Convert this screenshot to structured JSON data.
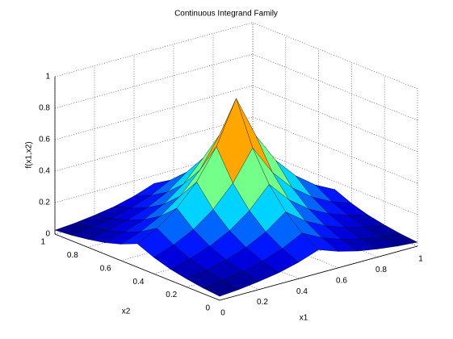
{
  "chart_data": {
    "type": "surface",
    "title": "Continuous Integrand Family",
    "xlabel": "x1",
    "ylabel": "x2",
    "zlabel": "f(x1,x2)",
    "colormap": "jet",
    "grid": true,
    "edgecolor": "#000000",
    "x": [
      0,
      0.1,
      0.2,
      0.3,
      0.4,
      0.5,
      0.6,
      0.7,
      0.8,
      0.9,
      1
    ],
    "y": [
      0,
      0.1,
      0.2,
      0.3,
      0.4,
      0.5,
      0.6,
      0.7,
      0.8,
      0.9,
      1
    ],
    "z": [
      [
        0.025,
        0.035,
        0.051,
        0.072,
        0.104,
        0.149,
        0.104,
        0.072,
        0.051,
        0.035,
        0.025
      ],
      [
        0.035,
        0.051,
        0.072,
        0.104,
        0.149,
        0.213,
        0.149,
        0.104,
        0.072,
        0.051,
        0.035
      ],
      [
        0.051,
        0.072,
        0.104,
        0.149,
        0.213,
        0.306,
        0.213,
        0.149,
        0.104,
        0.072,
        0.051
      ],
      [
        0.072,
        0.104,
        0.149,
        0.213,
        0.306,
        0.438,
        0.306,
        0.213,
        0.149,
        0.104,
        0.072
      ],
      [
        0.104,
        0.149,
        0.213,
        0.306,
        0.438,
        0.628,
        0.438,
        0.306,
        0.213,
        0.149,
        0.104
      ],
      [
        0.149,
        0.213,
        0.306,
        0.438,
        0.628,
        0.9,
        0.628,
        0.438,
        0.306,
        0.213,
        0.149
      ],
      [
        0.104,
        0.149,
        0.213,
        0.306,
        0.438,
        0.628,
        0.438,
        0.306,
        0.213,
        0.149,
        0.104
      ],
      [
        0.072,
        0.104,
        0.149,
        0.213,
        0.306,
        0.438,
        0.306,
        0.213,
        0.149,
        0.104,
        0.072
      ],
      [
        0.051,
        0.072,
        0.104,
        0.149,
        0.213,
        0.306,
        0.213,
        0.149,
        0.104,
        0.072,
        0.051
      ],
      [
        0.035,
        0.051,
        0.072,
        0.104,
        0.149,
        0.213,
        0.149,
        0.104,
        0.072,
        0.051,
        0.035
      ],
      [
        0.025,
        0.035,
        0.051,
        0.072,
        0.104,
        0.149,
        0.104,
        0.072,
        0.051,
        0.035,
        0.025
      ]
    ],
    "xlim": [
      0,
      1
    ],
    "ylim": [
      0,
      1
    ],
    "zlim": [
      0,
      1
    ],
    "xticks": [
      0,
      0.2,
      0.4,
      0.6,
      0.8,
      1
    ],
    "yticks": [
      0,
      0.2,
      0.4,
      0.6,
      0.8,
      1
    ],
    "zticks": [
      0,
      0.2,
      0.4,
      0.6,
      0.8,
      1
    ]
  }
}
